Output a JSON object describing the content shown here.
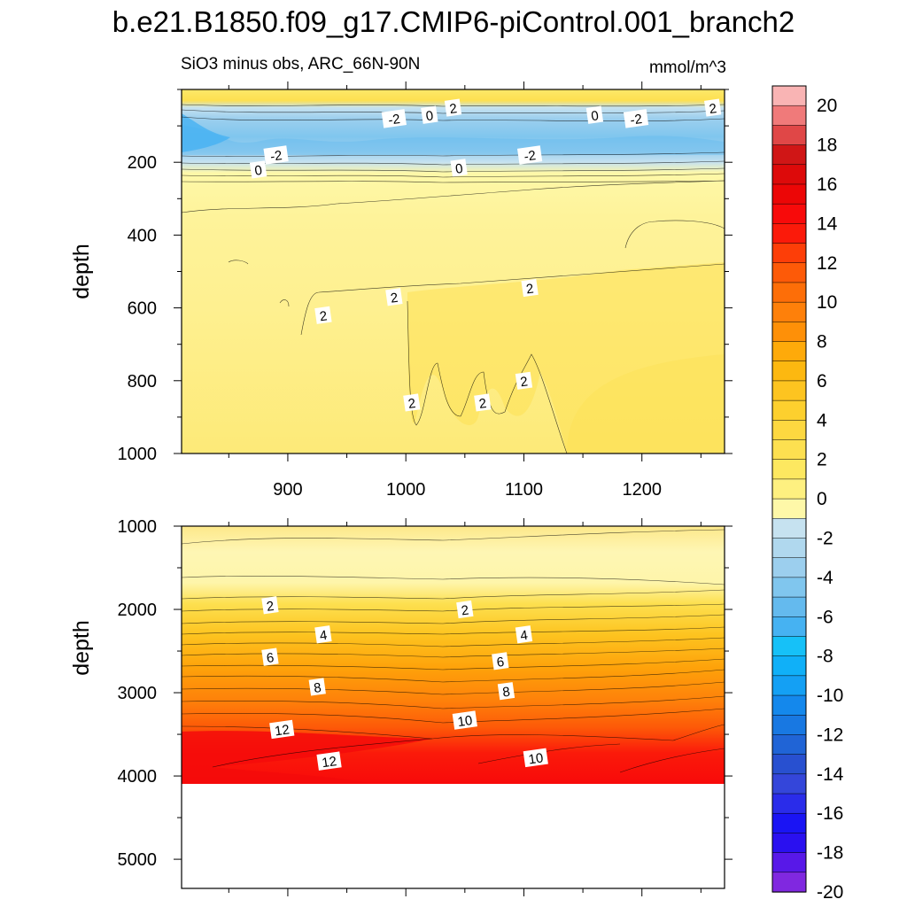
{
  "title": "b.e21.B1850.f09_g17.CMIP6-piControl.001_branch2",
  "chart_data": [
    {
      "type": "contour",
      "panel": "upper",
      "subtitle": "SiO3 minus obs, ARC_66N-90N",
      "units": "mmol/m^3",
      "xlabel": "",
      "ylabel": "depth",
      "xlim": [
        810,
        1270
      ],
      "ylim": [
        1000,
        0
      ],
      "xticks": [
        900,
        1000,
        1100,
        1200
      ],
      "yticks": [
        200,
        400,
        600,
        800,
        1000
      ],
      "contour_labels": [
        {
          "x": 1040,
          "depth": 50,
          "text": "2"
        },
        {
          "x": 1260,
          "depth": 50,
          "text": "2"
        },
        {
          "x": 1020,
          "depth": 70,
          "text": "0"
        },
        {
          "x": 1160,
          "depth": 70,
          "text": "0"
        },
        {
          "x": 990,
          "depth": 80,
          "text": "-2"
        },
        {
          "x": 1195,
          "depth": 80,
          "text": "-2"
        },
        {
          "x": 890,
          "depth": 180,
          "text": "-2"
        },
        {
          "x": 1105,
          "depth": 180,
          "text": "-2"
        },
        {
          "x": 875,
          "depth": 220,
          "text": "0"
        },
        {
          "x": 1045,
          "depth": 215,
          "text": "0"
        },
        {
          "x": 990,
          "depth": 570,
          "text": "2"
        },
        {
          "x": 1105,
          "depth": 545,
          "text": "2"
        },
        {
          "x": 930,
          "depth": 620,
          "text": "2"
        },
        {
          "x": 1005,
          "depth": 860,
          "text": "2"
        },
        {
          "x": 1065,
          "depth": 860,
          "text": "2"
        },
        {
          "x": 1100,
          "depth": 800,
          "text": "2"
        }
      ]
    },
    {
      "type": "contour",
      "panel": "lower",
      "xlabel": "",
      "ylabel": "depth",
      "xlim": [
        810,
        1270
      ],
      "ylim": [
        5350,
        1000
      ],
      "data_bottom_depth": 4100,
      "yticks": [
        1000,
        2000,
        3000,
        4000,
        5000
      ],
      "contour_labels": [
        {
          "x": 885,
          "depth": 1950,
          "text": "2"
        },
        {
          "x": 1050,
          "depth": 2000,
          "text": "2"
        },
        {
          "x": 930,
          "depth": 2300,
          "text": "4"
        },
        {
          "x": 1100,
          "depth": 2300,
          "text": "4"
        },
        {
          "x": 885,
          "depth": 2570,
          "text": "6"
        },
        {
          "x": 1080,
          "depth": 2620,
          "text": "6"
        },
        {
          "x": 925,
          "depth": 2930,
          "text": "8"
        },
        {
          "x": 1085,
          "depth": 2980,
          "text": "8"
        },
        {
          "x": 1050,
          "depth": 3330,
          "text": "10"
        },
        {
          "x": 1110,
          "depth": 3780,
          "text": "10"
        },
        {
          "x": 895,
          "depth": 3440,
          "text": "12"
        },
        {
          "x": 935,
          "depth": 3820,
          "text": "12"
        }
      ]
    }
  ],
  "colorbar": {
    "levels": [
      20,
      18,
      16,
      14,
      12,
      10,
      8,
      6,
      4,
      2,
      0,
      -2,
      -4,
      -6,
      -8,
      -10,
      -12,
      -14,
      -16,
      -18,
      -20
    ],
    "colors": [
      "#f9b4b4",
      "#f07a7a",
      "#e04747",
      "#d01616",
      "#dd0a0a",
      "#ec0606",
      "#f80a0a",
      "#fb1a0a",
      "#fd3e08",
      "#fd5a08",
      "#fd6e08",
      "#fe800a",
      "#fe9008",
      "#feaa0a",
      "#fdb810",
      "#fdc420",
      "#fdd02e",
      "#fdd840",
      "#fde050",
      "#fde860",
      "#fef080",
      "#fef8a8",
      "#c6e2f0",
      "#b0d8ee",
      "#9ccfee",
      "#80c6ee",
      "#64baee",
      "#46b2f2",
      "#16c1f8",
      "#10b0f8",
      "#14a0f4",
      "#1488ec",
      "#1878e2",
      "#2064d6",
      "#2850d0",
      "#3446da",
      "#2a2cea",
      "#1a14f4",
      "#2a10f0",
      "#5818e8",
      "#8028e0"
    ]
  }
}
